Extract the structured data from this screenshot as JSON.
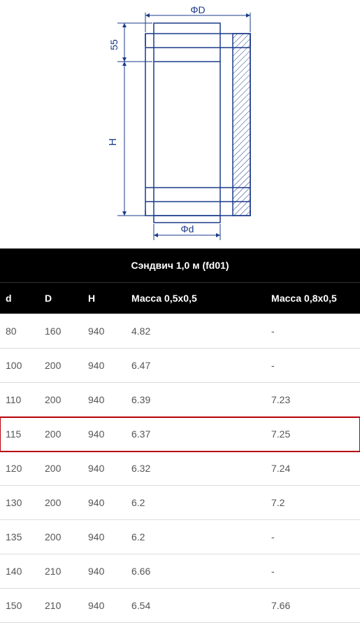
{
  "diagram": {
    "labels": {
      "phiD": "ΦD",
      "phid": "Φd",
      "H": "H",
      "t55": "55"
    },
    "stroke": "#1a3a8a",
    "stroke_width": 1.5,
    "hatch_color": "#1a3a8a",
    "bg": "#ffffff"
  },
  "table": {
    "title": "Сэндвич 1,0 м (fd01)",
    "columns": [
      "d",
      "D",
      "H",
      "Масса 0,5х0,5",
      "Масса 0,8х0,5"
    ],
    "highlight_row_index": 3,
    "highlight_color": "#b8000a",
    "header_bg": "#000000",
    "header_fg": "#ffffff",
    "row_border": "#dddddd",
    "cell_fg": "#555555",
    "fontsize": 14,
    "rows": [
      [
        "80",
        "160",
        "940",
        "4.82",
        "-"
      ],
      [
        "100",
        "200",
        "940",
        "6.47",
        "-"
      ],
      [
        "110",
        "200",
        "940",
        "6.39",
        "7.23"
      ],
      [
        "115",
        "200",
        "940",
        "6.37",
        "7.25"
      ],
      [
        "120",
        "200",
        "940",
        "6.32",
        "7.24"
      ],
      [
        "130",
        "200",
        "940",
        "6.2",
        "7.2"
      ],
      [
        "135",
        "200",
        "940",
        "6.2",
        "-"
      ],
      [
        "140",
        "210",
        "940",
        "6.66",
        "-"
      ],
      [
        "150",
        "210",
        "940",
        "6.54",
        "7.66"
      ]
    ]
  }
}
